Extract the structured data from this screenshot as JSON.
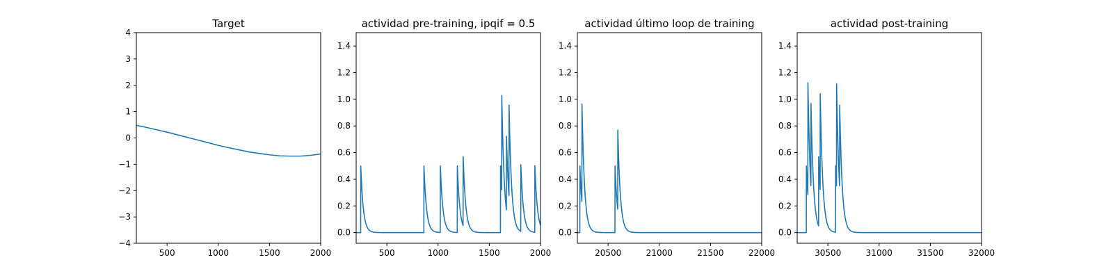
{
  "chart_data": [
    {
      "type": "line",
      "title": "Target",
      "xlabel": "",
      "ylabel": "",
      "xlim": [
        200,
        2000
      ],
      "ylim": [
        -4,
        4
      ],
      "xticks": [
        500,
        1000,
        1500,
        2000
      ],
      "yticks": [
        -4,
        -3,
        -2,
        -1,
        0,
        1,
        2,
        3,
        4
      ],
      "grid": false,
      "color": "#1f77b4",
      "series": [
        {
          "x": [
            200,
            300,
            400,
            500,
            600,
            700,
            800,
            900,
            1000,
            1100,
            1200,
            1300,
            1400,
            1500,
            1600,
            1700,
            1800,
            1900,
            2000
          ],
          "y": [
            0.48,
            0.4,
            0.31,
            0.22,
            0.12,
            0.02,
            -0.08,
            -0.18,
            -0.28,
            -0.37,
            -0.45,
            -0.53,
            -0.59,
            -0.64,
            -0.68,
            -0.69,
            -0.69,
            -0.66,
            -0.61
          ]
        }
      ]
    },
    {
      "type": "line",
      "title": "actividad pre-training, ipqif = 0.5",
      "xlabel": "",
      "ylabel": "",
      "xlim": [
        200,
        2000
      ],
      "ylim": [
        -0.08,
        1.5
      ],
      "xticks": [
        500,
        1000,
        1500,
        2000
      ],
      "yticks": [
        0.0,
        0.2,
        0.4,
        0.6,
        0.8,
        1.0,
        1.2,
        1.4
      ],
      "yticklabels": [
        "0.0",
        "0.2",
        "0.4",
        "0.6",
        "0.8",
        "1.0",
        "1.2",
        "1.4"
      ],
      "grid": false,
      "color": "#1f77b4",
      "spikes": [
        [
          245,
          0.5
        ],
        [
          862,
          0.5
        ],
        [
          1022,
          0.5
        ],
        [
          1188,
          0.5
        ],
        [
          1245,
          0.52
        ],
        [
          1610,
          0.5
        ],
        [
          1622,
          0.72
        ],
        [
          1668,
          0.56
        ],
        [
          1693,
          0.69
        ],
        [
          1808,
          0.5
        ],
        [
          1945,
          0.5
        ]
      ],
      "decay": 25
    },
    {
      "type": "line",
      "title": "actividad último loop de training",
      "xlabel": "",
      "ylabel": "",
      "xlim": [
        20200,
        22000
      ],
      "ylim": [
        -0.08,
        1.5
      ],
      "xticks": [
        20500,
        21000,
        21500,
        22000
      ],
      "yticks": [
        0.0,
        0.2,
        0.4,
        0.6,
        0.8,
        1.0,
        1.2,
        1.4
      ],
      "yticklabels": [
        "0.0",
        "0.2",
        "0.4",
        "0.6",
        "0.8",
        "1.0",
        "1.2",
        "1.4"
      ],
      "grid": false,
      "color": "#1f77b4",
      "spikes": [
        [
          20225,
          0.5
        ],
        [
          20245,
          0.74
        ],
        [
          20568,
          0.5
        ],
        [
          20595,
          0.6
        ]
      ],
      "decay": 25
    },
    {
      "type": "line",
      "title": "actividad post-training",
      "xlabel": "",
      "ylabel": "",
      "xlim": [
        30200,
        32000
      ],
      "ylim": [
        -0.08,
        1.5
      ],
      "xticks": [
        30500,
        31000,
        31500,
        32000
      ],
      "yticks": [
        0.0,
        0.2,
        0.4,
        0.6,
        0.8,
        1.0,
        1.2,
        1.4
      ],
      "yticklabels": [
        "0.0",
        "0.2",
        "0.4",
        "0.6",
        "0.8",
        "1.0",
        "1.2",
        "1.4"
      ],
      "grid": false,
      "color": "#1f77b4",
      "spikes": [
        [
          30290,
          0.5
        ],
        [
          30305,
          0.85
        ],
        [
          30335,
          0.63
        ],
        [
          30410,
          0.52
        ],
        [
          30425,
          0.73
        ],
        [
          30575,
          0.5
        ],
        [
          30585,
          0.78
        ],
        [
          30615,
          0.62
        ]
      ],
      "decay": 25
    }
  ]
}
